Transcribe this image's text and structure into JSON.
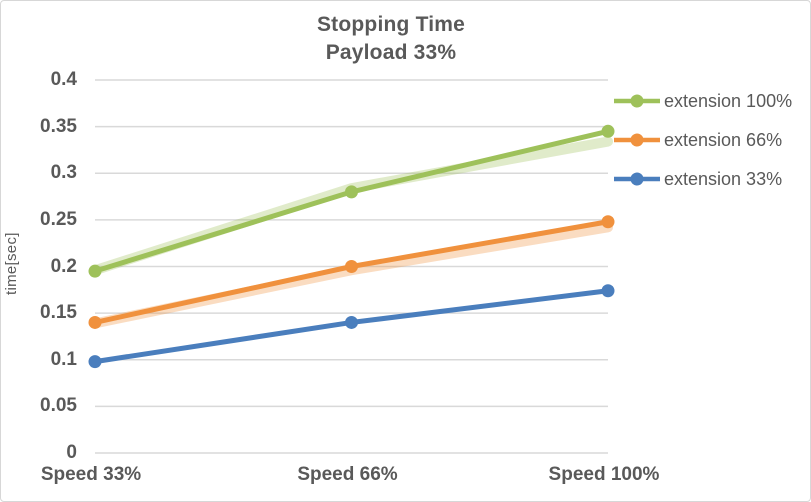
{
  "chart_data": {
    "type": "line",
    "title": "Stopping Time",
    "subtitle": "Payload 33%",
    "ylabel": "time[sec]",
    "xlabel": "",
    "categories": [
      "Speed 33%",
      "Speed 66%",
      "Speed 100%"
    ],
    "ylim": [
      0,
      0.4
    ],
    "y_tick_step": 0.05,
    "y_ticks": [
      "0",
      "0.05",
      "0.1",
      "0.15",
      "0.2",
      "0.25",
      "0.3",
      "0.35",
      "0.4"
    ],
    "grid": "horizontal-only",
    "legend_position": "right",
    "marker": "circle",
    "series": [
      {
        "name": "extension 100%",
        "color": "#9ec15a",
        "values": [
          0.195,
          0.28,
          0.345
        ],
        "band_values": [
          0.196,
          0.284,
          0.334
        ]
      },
      {
        "name": "extension 66%",
        "color": "#f0913d",
        "values": [
          0.14,
          0.2,
          0.248
        ],
        "band_values": [
          0.139,
          0.196,
          0.242
        ]
      },
      {
        "name": "extension 33%",
        "color": "#4a7ebd",
        "values": [
          0.098,
          0.14,
          0.174
        ],
        "band_values": null
      }
    ]
  },
  "styles": {
    "text_color": "#595959",
    "grid_color": "#d9d9d9",
    "border_color": "#d7d7d7",
    "background": "#ffffff"
  }
}
